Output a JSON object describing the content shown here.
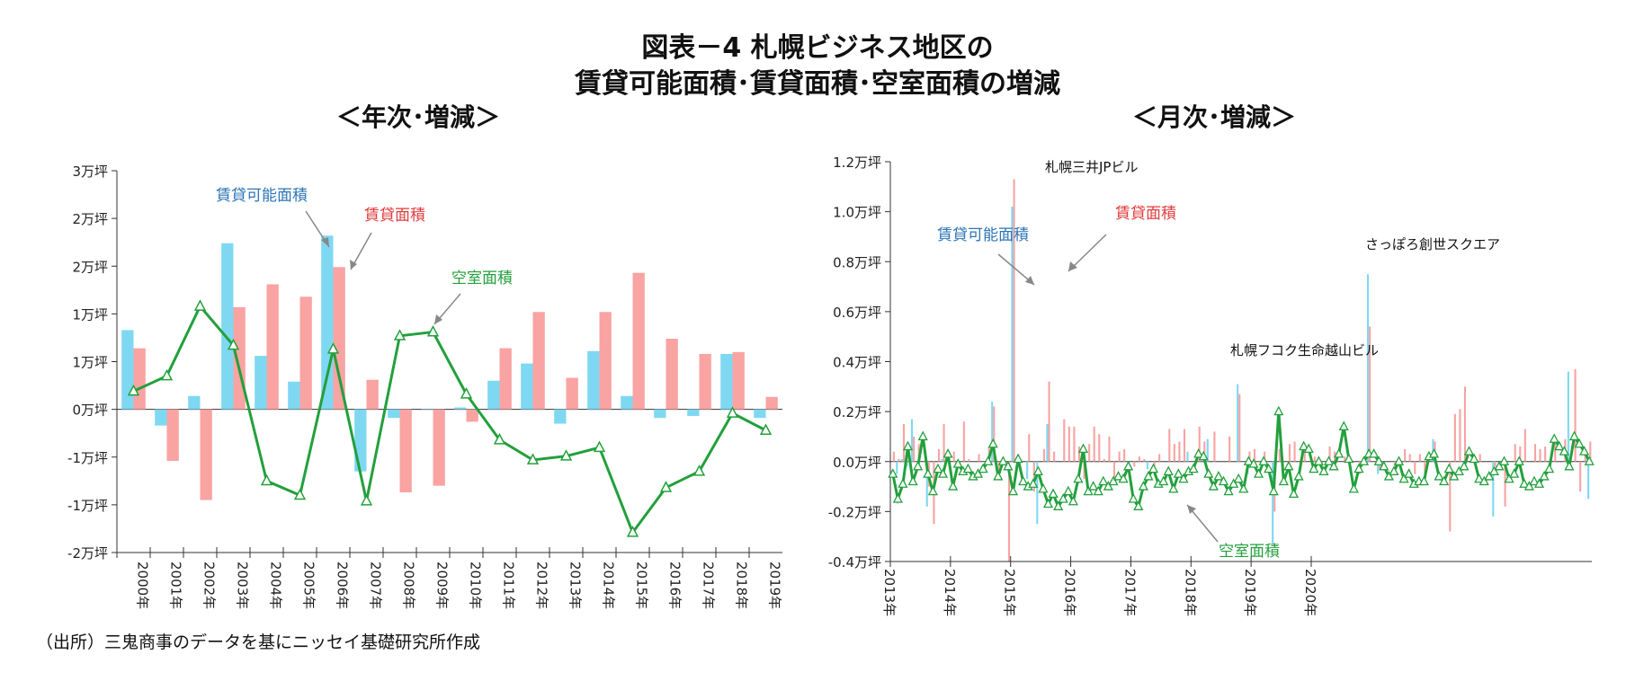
{
  "title": {
    "line1": "図表－4 札幌ビジネス地区の",
    "line2": "賃貸可能面積･賃貸面積･空室面積の増減"
  },
  "source": "（出所）三鬼商事のデータを基にニッセイ基礎研究所作成",
  "colors": {
    "available": "#7fd8f2",
    "rented": "#f9a3a3",
    "vacant": "#22a03c",
    "label_blue": "#2e75b6",
    "label_red": "#e23b3b",
    "label_green": "#22a03c"
  },
  "chart_data": [
    {
      "type": "bar",
      "subtitle": "＜年次･増減＞",
      "categories": [
        "2000年",
        "2001年",
        "2002年",
        "2003年",
        "2004年",
        "2005年",
        "2006年",
        "2007年",
        "2008年",
        "2009年",
        "2010年",
        "2011年",
        "2012年",
        "2013年",
        "2014年",
        "2015年",
        "2016年",
        "2017年",
        "2018年",
        "2019年"
      ],
      "y_tick_labels": [
        "3万坪",
        "2万坪",
        "2万坪",
        "1万坪",
        "1万坪",
        "0万坪",
        "-1万坪",
        "-1万坪",
        "-2万坪"
      ],
      "ylim": [
        -1.5,
        2.5
      ],
      "series": [
        {
          "name": "賃貸可能面積",
          "kind": "bar",
          "values": [
            0.83,
            -0.17,
            0.14,
            1.74,
            0.56,
            0.29,
            1.82,
            -0.65,
            -0.09,
            0.0,
            0.02,
            0.3,
            0.48,
            -0.15,
            0.61,
            0.14,
            -0.09,
            -0.07,
            0.58,
            -0.09
          ]
        },
        {
          "name": "賃貸面積",
          "kind": "bar",
          "values": [
            0.64,
            -0.54,
            -0.95,
            1.07,
            1.31,
            1.18,
            1.49,
            0.31,
            -0.87,
            -0.8,
            -0.13,
            0.64,
            1.02,
            0.33,
            1.02,
            1.43,
            0.74,
            0.58,
            0.6,
            0.13
          ]
        },
        {
          "name": "空室面積",
          "kind": "line",
          "values": [
            0.19,
            0.35,
            1.08,
            0.67,
            -0.75,
            -0.9,
            0.63,
            -0.96,
            0.77,
            0.81,
            0.16,
            -0.32,
            -0.53,
            -0.49,
            -0.4,
            -1.29,
            -0.82,
            -0.65,
            -0.04,
            -0.22
          ]
        }
      ],
      "annotations": [
        "賃貸可能面積",
        "賃貸面積",
        "空室面積"
      ]
    },
    {
      "type": "bar",
      "subtitle": "＜月次･増減＞",
      "x_tick_labels": [
        "2013年",
        "2014年",
        "2015年",
        "2016年",
        "2017年",
        "2018年",
        "2019年",
        "2020年"
      ],
      "y_tick_labels": [
        "1.2万坪",
        "1.0万坪",
        "0.8万坪",
        "0.6万坪",
        "0.4万坪",
        "0.2万坪",
        "0.0万坪",
        "-0.2万坪",
        "-0.4万坪"
      ],
      "ylim": [
        -0.4,
        1.2
      ],
      "series": [
        {
          "name": "賃貸可能面積",
          "kind": "bar",
          "values": [
            0.0,
            -0.05,
            0.01,
            -0.02,
            0.17,
            0.0,
            0.0,
            -0.18,
            0.0,
            0.0,
            0.01,
            0.0,
            0.0,
            0.0,
            0.0,
            0.0,
            0.0,
            0.0,
            0.0,
            0.0,
            0.24,
            0.0,
            0.0,
            0.0,
            1.02,
            0.0,
            0.0,
            -0.07,
            0.0,
            -0.25,
            0.0,
            0.15,
            0.0,
            0.0,
            0.0,
            0.0,
            0.0,
            0.0,
            0.0,
            0.0,
            0.0,
            0.0,
            0.0,
            0.0,
            0.0,
            0.0,
            0.0,
            0.0,
            0.0,
            0.0,
            0.0,
            -0.03,
            0.0,
            0.0,
            0.0,
            0.0,
            0.0,
            0.0,
            0.0,
            0.04,
            0.0,
            0.0,
            0.0,
            0.09,
            0.0,
            0.0,
            0.0,
            0.0,
            0.0,
            0.31,
            0.0,
            -0.05,
            0.0,
            0.0,
            0.0,
            0.0,
            -0.33,
            0.0,
            0.0,
            0.0,
            0.0,
            0.0,
            0.0,
            0.0,
            0.0,
            0.0,
            0.0,
            0.0,
            0.0,
            0.0,
            0.0,
            0.0,
            0.0,
            0.0,
            0.0,
            0.75,
            0.0,
            -0.05,
            0.0,
            0.0,
            0.0,
            0.0,
            0.0,
            0.0,
            0.0,
            0.0,
            0.0,
            0.0,
            0.09,
            0.0,
            0.0,
            0.0,
            0.0,
            0.0,
            0.0,
            0.0,
            0.0,
            0.0,
            0.0,
            0.0,
            -0.22,
            0.0,
            0.0,
            0.0,
            0.0,
            0.0,
            0.0,
            0.0,
            0.0,
            0.0,
            0.0,
            0.0,
            0.0,
            0.0,
            0.0,
            0.36,
            0.0,
            0.0,
            0.0,
            -0.15
          ]
        },
        {
          "name": "賃貸面積",
          "kind": "bar",
          "values": [
            0.04,
            0.01,
            0.15,
            0.03,
            0.1,
            0.07,
            0.0,
            -0.1,
            -0.25,
            0.05,
            0.15,
            0.02,
            0.04,
            0.0,
            0.16,
            0.01,
            0.0,
            0.03,
            0.0,
            0.06,
            0.22,
            -0.05,
            0.0,
            -0.4,
            1.13,
            0.0,
            0.0,
            0.11,
            -0.12,
            0.0,
            0.05,
            0.32,
            0.04,
            0.0,
            0.17,
            0.14,
            0.14,
            0.06,
            -0.07,
            0.07,
            0.14,
            0.11,
            0.01,
            0.1,
            -0.08,
            0.04,
            0.05,
            0.0,
            -0.02,
            0.02,
            0.01,
            0.0,
            -0.04,
            0.03,
            0.0,
            0.13,
            0.07,
            0.08,
            0.13,
            0.0,
            0.0,
            0.14,
            0.08,
            0.0,
            0.12,
            0.0,
            0.0,
            0.1,
            0.0,
            0.27,
            0.0,
            0.04,
            0.05,
            0.0,
            0.04,
            0.0,
            -0.2,
            0.05,
            0.0,
            0.07,
            0.08,
            0.0,
            0.05,
            0.0,
            0.02,
            0.0,
            0.0,
            0.06,
            0.04,
            0.0,
            0.02,
            0.0,
            0.0,
            -0.05,
            0.0,
            0.54,
            0.0,
            -0.03,
            0.0,
            0.0,
            -0.04,
            0.0,
            0.05,
            0.03,
            -0.05,
            0.03,
            -0.05,
            0.0,
            0.08,
            0.0,
            0.0,
            -0.28,
            0.19,
            0.21,
            0.3,
            0.0,
            0.0,
            0.03,
            0.0,
            0.0,
            -0.02,
            0.0,
            -0.18,
            0.0,
            0.07,
            0.06,
            0.13,
            0.0,
            0.07,
            0.05,
            0.06,
            0.0,
            0.08,
            0.0,
            0.09,
            0.0,
            0.37,
            -0.12,
            0.05,
            0.08,
            -0.19
          ]
        },
        {
          "name": "空室面積",
          "kind": "line",
          "values": [
            -0.05,
            -0.15,
            -0.09,
            0.06,
            -0.08,
            -0.02,
            0.1,
            -0.05,
            -0.12,
            -0.03,
            -0.05,
            0.03,
            -0.1,
            -0.01,
            -0.04,
            -0.03,
            -0.06,
            -0.05,
            -0.03,
            0.0,
            0.07,
            -0.06,
            0.0,
            -0.02,
            -0.12,
            0.01,
            -0.08,
            -0.1,
            -0.09,
            -0.04,
            -0.11,
            -0.17,
            -0.13,
            -0.18,
            -0.15,
            -0.12,
            -0.16,
            -0.07,
            0.05,
            -0.12,
            -0.1,
            -0.12,
            -0.08,
            -0.1,
            -0.08,
            -0.06,
            -0.07,
            -0.02,
            -0.15,
            -0.18,
            -0.1,
            -0.06,
            -0.03,
            -0.09,
            -0.08,
            -0.04,
            -0.11,
            -0.05,
            -0.07,
            -0.04,
            -0.03,
            0.03,
            0.02,
            -0.05,
            -0.1,
            -0.06,
            -0.08,
            -0.12,
            -0.09,
            -0.07,
            -0.11,
            0.0,
            -0.01,
            -0.05,
            0.0,
            -0.03,
            -0.12,
            0.2,
            -0.08,
            -0.02,
            -0.13,
            -0.06,
            0.06,
            0.05,
            -0.03,
            0.0,
            -0.04,
            0.0,
            -0.02,
            0.03,
            0.14,
            0.01,
            -0.11,
            -0.03,
            0.0,
            0.03,
            0.03,
            0.0,
            -0.02,
            -0.06,
            -0.04,
            0.0,
            -0.07,
            -0.05,
            -0.09,
            -0.08,
            -0.08,
            0.02,
            0.03,
            -0.06,
            -0.08,
            -0.03,
            -0.06,
            -0.04,
            -0.02,
            0.04,
            0.01,
            -0.07,
            -0.08,
            -0.06,
            -0.04,
            -0.02,
            0.0,
            -0.07,
            -0.05,
            0.0,
            -0.09,
            -0.1,
            -0.08,
            -0.09,
            -0.06,
            -0.03,
            0.09,
            0.06,
            0.04,
            -0.02,
            0.1,
            0.07,
            0.04,
            0.0
          ]
        }
      ],
      "annotations": [
        "札幌三井JPビル",
        "賃貸可能面積",
        "賃貸面積",
        "さっぽろ創世スクエア",
        "札幌フコク生命越山ビル",
        "空室面積"
      ]
    }
  ]
}
